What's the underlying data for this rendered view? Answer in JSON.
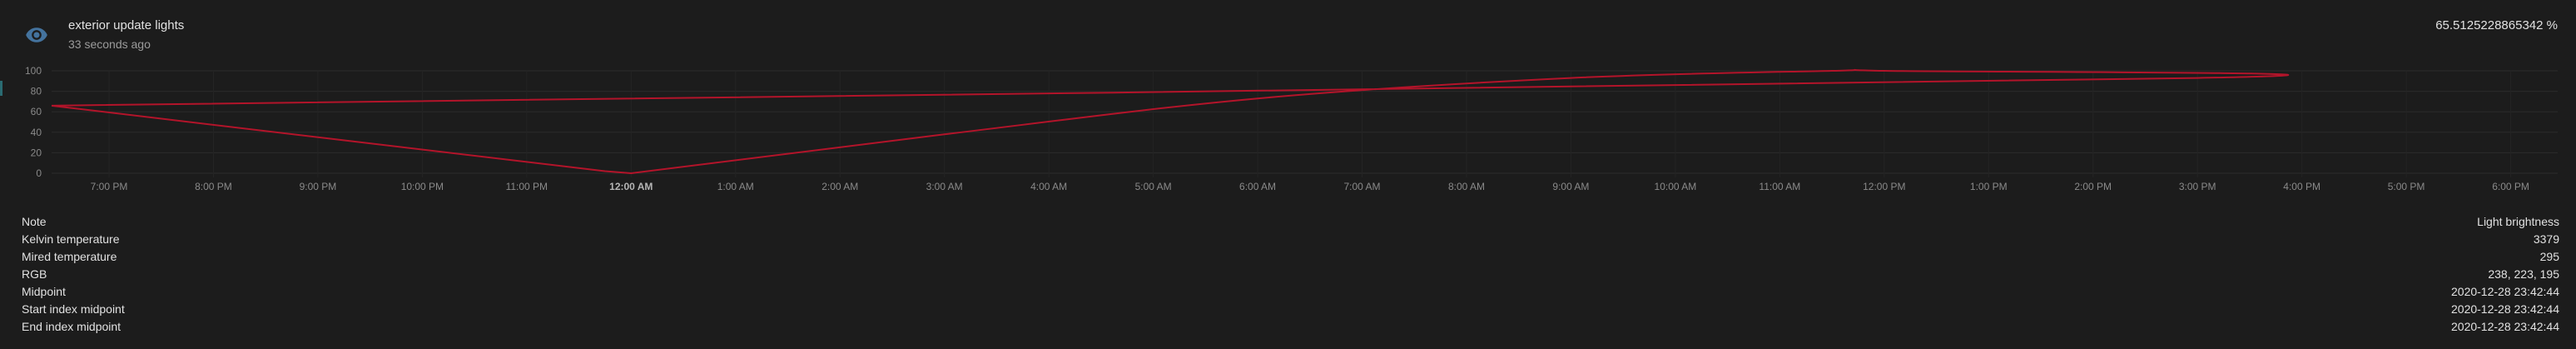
{
  "entity": {
    "title": "exterior update lights",
    "last_changed": "33 seconds ago",
    "state": "65.5125228865342 %",
    "icon": "eye-icon",
    "icon_color": "#44739e"
  },
  "chart_data": {
    "type": "line",
    "title": "",
    "xlabel": "",
    "ylabel": "",
    "ylim": [
      0,
      100
    ],
    "y_ticks": [
      0,
      20,
      40,
      60,
      80,
      100
    ],
    "x_tick_labels": [
      "7:00 PM",
      "8:00 PM",
      "9:00 PM",
      "10:00 PM",
      "11:00 PM",
      "12:00 AM",
      "1:00 AM",
      "2:00 AM",
      "3:00 AM",
      "4:00 AM",
      "5:00 AM",
      "6:00 AM",
      "7:00 AM",
      "8:00 AM",
      "9:00 AM",
      "10:00 AM",
      "11:00 AM",
      "12:00 PM",
      "1:00 PM",
      "2:00 PM",
      "3:00 PM",
      "4:00 PM",
      "5:00 PM",
      "6:00 PM"
    ],
    "bold_tick": "12:00 AM",
    "grid": true,
    "line_color": "#b3142a",
    "series": [
      {
        "x": [
          "6:27 PM",
          "11:45 PM",
          "12:00 AM",
          "3:00 AM",
          "6:00 AM",
          "9:00 AM",
          "11:30 AM",
          "12:00 PM",
          "3:00 PM",
          "6:27 PM"
        ],
        "values": [
          66,
          2,
          0,
          38,
          73,
          93,
          100,
          100,
          93,
          66
        ]
      }
    ]
  },
  "attributes": [
    {
      "label": "Note",
      "value": "Light brightness"
    },
    {
      "label": "Kelvin temperature",
      "value": "3379"
    },
    {
      "label": "Mired temperature",
      "value": "295"
    },
    {
      "label": "RGB",
      "value": "238, 223, 195"
    },
    {
      "label": "Midpoint",
      "value": "2020-12-28 23:42:44"
    },
    {
      "label": "Start index midpoint",
      "value": "2020-12-28 23:42:44"
    },
    {
      "label": "End index midpoint",
      "value": "2020-12-28 23:42:44"
    }
  ]
}
